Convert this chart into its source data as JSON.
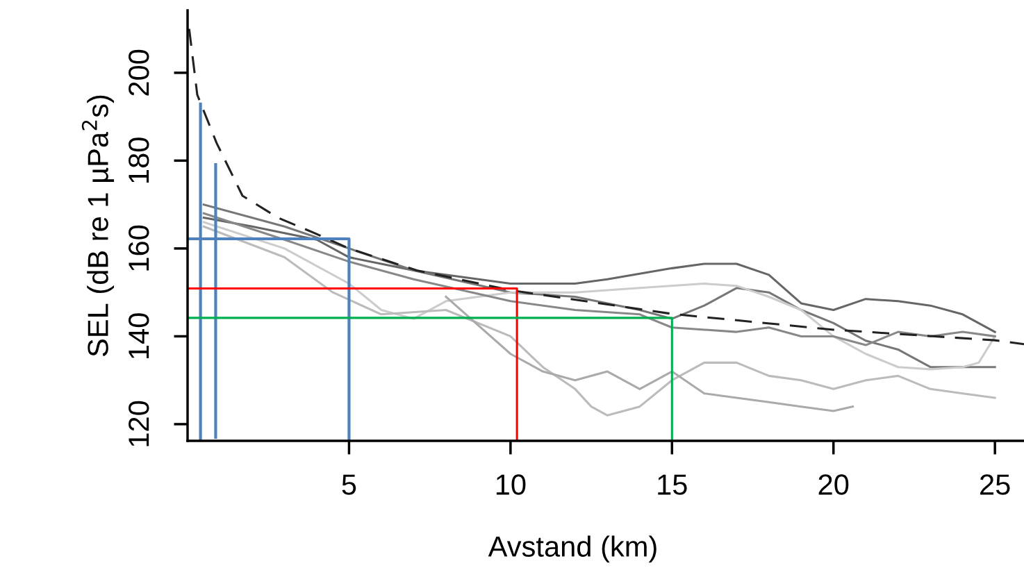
{
  "chart_data": {
    "type": "line",
    "xlabel": "Avstand (km)",
    "ylabel": "SEL (dB re 1 µPa$^{2}$s)",
    "xlim": [
      0,
      25.9
    ],
    "xticks": [
      5,
      10,
      15,
      20,
      25
    ],
    "ylim": [
      116.2,
      214.2
    ],
    "yticks": [
      120,
      140,
      160,
      180,
      200
    ],
    "grid": false,
    "marker": "none",
    "series": [
      {
        "color": "#666666",
        "line_style": "solid",
        "x": [
          0.5,
          2,
          4,
          5,
          7,
          10,
          12,
          13,
          15,
          16,
          17,
          18,
          19,
          20,
          21,
          22,
          23,
          24,
          25
        ],
        "values": [
          167,
          165,
          162,
          158,
          155,
          152,
          152,
          153,
          155.5,
          156.5,
          156.5,
          154,
          147.5,
          146,
          148.5,
          148,
          147,
          145,
          141
        ]
      },
      {
        "color": "#777777",
        "line_style": "solid",
        "x": [
          0.5,
          3,
          5,
          7,
          10,
          12,
          14,
          15,
          16,
          17,
          18,
          19,
          20,
          21,
          22,
          23,
          24,
          25
        ],
        "values": [
          170,
          165,
          160,
          155,
          150,
          149,
          146,
          144,
          147,
          151,
          150,
          146,
          143,
          139,
          137,
          133,
          133,
          133
        ]
      },
      {
        "color": "#cccccc",
        "line_style": "solid",
        "x": [
          0.5,
          3,
          5,
          6,
          7,
          8,
          10,
          12,
          14,
          16,
          17,
          18,
          19,
          20,
          21,
          22,
          23,
          24,
          24.5,
          25
        ],
        "values": [
          166,
          160,
          152,
          146,
          144,
          148,
          150,
          150,
          151,
          152,
          151.5,
          149,
          146,
          140,
          136,
          133,
          132.5,
          133,
          134,
          140
        ]
      },
      {
        "color": "#888888",
        "line_style": "solid",
        "x": [
          0.5,
          3,
          5,
          7,
          10,
          12,
          14,
          15,
          17,
          18,
          19,
          20,
          21,
          22,
          23,
          24,
          25
        ],
        "values": [
          168,
          162,
          157,
          153,
          148,
          146,
          145,
          142,
          141,
          142,
          140,
          140,
          138,
          141,
          140,
          141,
          140
        ]
      },
      {
        "color": "#bbbbbb",
        "line_style": "solid",
        "x": [
          0.5,
          3,
          4.5,
          6,
          8,
          10,
          11,
          12,
          12.5,
          13,
          14,
          15,
          16,
          17,
          18,
          19,
          20,
          21,
          22,
          23,
          24,
          25
        ],
        "values": [
          165,
          158,
          150,
          145,
          146,
          140,
          133,
          128,
          124,
          122,
          124,
          130,
          134,
          134,
          131,
          130,
          128,
          130,
          131,
          128,
          127,
          126
        ]
      },
      {
        "color": "#aaaaaa",
        "line_style": "solid",
        "x": [
          8,
          10,
          11,
          12,
          13,
          14,
          15,
          16,
          17,
          18,
          19,
          20,
          20.6
        ],
        "values": [
          149,
          136,
          132,
          130,
          132,
          128,
          132,
          127,
          126,
          125,
          124,
          123,
          124
        ]
      },
      {
        "color": "#222222",
        "line_style": "dashed",
        "x": [
          0.05,
          0.3,
          0.9,
          1.7,
          2.8,
          3.9,
          5,
          7.1,
          10,
          15,
          20,
          25,
          25.9
        ],
        "values": [
          210,
          195,
          184,
          172,
          167,
          163.6,
          160,
          155,
          150.5,
          145.1,
          141.5,
          139.1,
          138.2
        ]
      },
      {
        "color": "#4f81bd",
        "line_style": "solid",
        "x": [
          0.4,
          0.4
        ],
        "values": [
          192.9,
          116.7
        ]
      },
      {
        "color": "#4f81bd",
        "line_style": "solid",
        "x": [
          0.87,
          0.87
        ],
        "values": [
          179.1,
          117
        ]
      },
      {
        "color": "#4f81bd",
        "line_style": "solid",
        "x": [
          0,
          5,
          5
        ],
        "values": [
          162.2,
          162.2,
          116.5
        ]
      },
      {
        "color": "#ff0000",
        "line_style": "solid",
        "x": [
          0,
          10.2,
          10.2
        ],
        "values": [
          150.9,
          150.9,
          116.5
        ]
      },
      {
        "color": "#00b050",
        "line_style": "solid",
        "x": [
          0,
          15,
          15
        ],
        "values": [
          144.2,
          144.2,
          116.5
        ]
      }
    ]
  }
}
